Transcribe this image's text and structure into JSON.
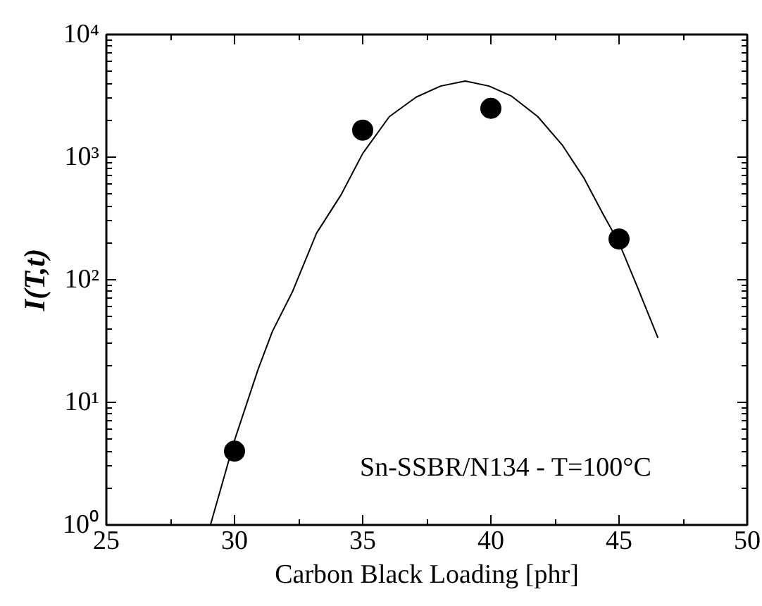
{
  "chart_data": {
    "type": "scatter",
    "xlabel": "Carbon Black Loading [phr]",
    "ylabel": "I(T,t)",
    "log": "y",
    "grid": false,
    "xlim": [
      25,
      50
    ],
    "xticks": [
      25,
      30,
      35,
      40,
      45,
      50
    ],
    "ylim": [
      1,
      10000
    ],
    "yticks": [
      {
        "value": 1,
        "label": "10⁰"
      },
      {
        "value": 10,
        "label": "10¹"
      },
      {
        "value": 100,
        "label": "10²"
      },
      {
        "value": 1000,
        "label": "10³"
      },
      {
        "value": 10000,
        "label": "10⁴"
      }
    ],
    "annotations": [
      "Sn-SSBR/N134 - T=100°C"
    ],
    "series": [
      {
        "marker": "circle",
        "color": "#000000",
        "x": [
          30,
          35,
          40,
          45
        ],
        "values": [
          4.0,
          1660,
          2500,
          215
        ]
      },
      {
        "type": "line",
        "marker": "none",
        "line_style": "solid",
        "color": "#000000",
        "x": [
          29.06,
          30,
          30.92,
          31.48,
          32.25,
          33.2,
          34.15,
          35,
          36.04,
          37.09,
          38.04,
          39,
          39.93,
          40.79,
          41.83,
          42.78,
          43.63,
          44.39,
          45,
          45.72,
          46.52
        ],
        "values": [
          1,
          4.9,
          18.6,
          38,
          79,
          240,
          490,
          1070,
          2140,
          3090,
          3800,
          4170,
          3800,
          3160,
          2140,
          1260,
          676,
          339,
          200,
          87,
          33.5
        ]
      }
    ]
  }
}
